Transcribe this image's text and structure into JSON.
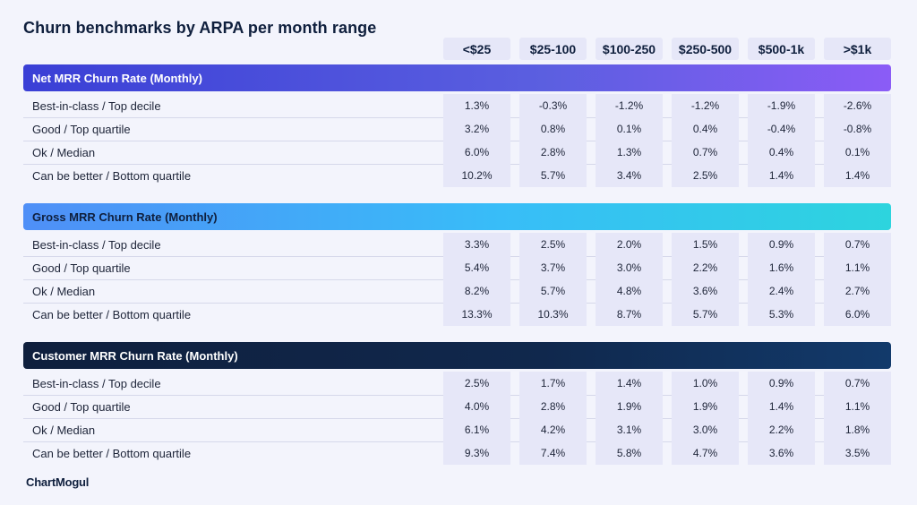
{
  "title": "Churn benchmarks by ARPA per month range",
  "logo": "ChartMogul",
  "columns": [
    "<$25",
    "$25-100",
    "$100-250",
    "$250-500",
    "$500-1k",
    ">$1k"
  ],
  "row_labels": [
    "Best-in-class / Top decile",
    "Good / Top quartile",
    "Ok / Median",
    "Can be better / Bottom quartile"
  ],
  "colors": {
    "net_bar": "#4b4fdc",
    "gross_bar": "#38bdf8",
    "customer_bar": "#0f1f3d",
    "cell_bg": "#e6e7f8",
    "page_bg": "#f3f4fc"
  },
  "chart_data": {
    "type": "table",
    "title": "Churn benchmarks by ARPA per month range",
    "columns": [
      "<$25",
      "$25-100",
      "$100-250",
      "$250-500",
      "$500-1k",
      ">$1k"
    ],
    "sections": [
      {
        "name": "Net MRR Churn Rate (Monthly)",
        "rows": [
          {
            "label": "Best-in-class / Top decile",
            "values": [
              "1.3%",
              "-0.3%",
              "-1.2%",
              "-1.2%",
              "-1.9%",
              "-2.6%"
            ]
          },
          {
            "label": "Good / Top quartile",
            "values": [
              "3.2%",
              "0.8%",
              "0.1%",
              "0.4%",
              "-0.4%",
              "-0.8%"
            ]
          },
          {
            "label": "Ok / Median",
            "values": [
              "6.0%",
              "2.8%",
              "1.3%",
              "0.7%",
              "0.4%",
              "0.1%"
            ]
          },
          {
            "label": "Can be better / Bottom quartile",
            "values": [
              "10.2%",
              "5.7%",
              "3.4%",
              "2.5%",
              "1.4%",
              "1.4%"
            ]
          }
        ]
      },
      {
        "name": "Gross MRR Churn Rate (Monthly)",
        "rows": [
          {
            "label": "Best-in-class / Top decile",
            "values": [
              "3.3%",
              "2.5%",
              "2.0%",
              "1.5%",
              "0.9%",
              "0.7%"
            ]
          },
          {
            "label": "Good / Top quartile",
            "values": [
              "5.4%",
              "3.7%",
              "3.0%",
              "2.2%",
              "1.6%",
              "1.1%"
            ]
          },
          {
            "label": "Ok / Median",
            "values": [
              "8.2%",
              "5.7%",
              "4.8%",
              "3.6%",
              "2.4%",
              "2.7%"
            ]
          },
          {
            "label": "Can be better / Bottom quartile",
            "values": [
              "13.3%",
              "10.3%",
              "8.7%",
              "5.7%",
              "5.3%",
              "6.0%"
            ]
          }
        ]
      },
      {
        "name": "Customer MRR Churn Rate (Monthly)",
        "rows": [
          {
            "label": "Best-in-class / Top decile",
            "values": [
              "2.5%",
              "1.7%",
              "1.4%",
              "1.0%",
              "0.9%",
              "0.7%"
            ]
          },
          {
            "label": "Good / Top quartile",
            "values": [
              "4.0%",
              "2.8%",
              "1.9%",
              "1.9%",
              "1.4%",
              "1.1%"
            ]
          },
          {
            "label": "Ok / Median",
            "values": [
              "6.1%",
              "4.2%",
              "3.1%",
              "3.0%",
              "2.2%",
              "1.8%"
            ]
          },
          {
            "label": "Can be better / Bottom quartile",
            "values": [
              "9.3%",
              "7.4%",
              "5.8%",
              "4.7%",
              "3.6%",
              "3.5%"
            ]
          }
        ]
      }
    ]
  }
}
